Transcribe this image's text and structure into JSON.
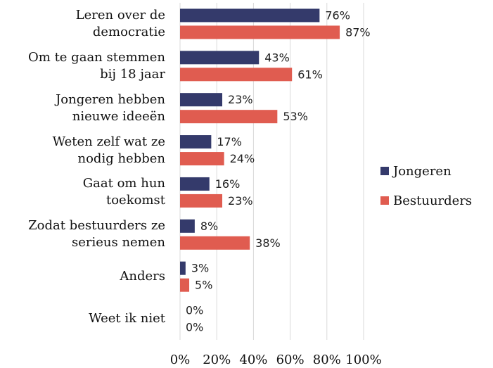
{
  "chart_data": {
    "type": "bar",
    "orientation": "horizontal",
    "categories": [
      "Leren over de\ndemocratie",
      "Om te gaan stemmen\nbij 18 jaar",
      "Jongeren hebben\nnieuwe ideeën",
      "Weten zelf wat ze\nnodig hebben",
      "Gaat om hun\ntoekomst",
      "Zodat bestuurders ze\nserieus nemen",
      "Anders",
      "Weet ik niet"
    ],
    "series": [
      {
        "name": "Jongeren",
        "color": "#343a6b",
        "values": [
          76,
          43,
          23,
          17,
          16,
          8,
          3,
          0
        ],
        "value_labels": [
          "76%",
          "43%",
          "23%",
          "17%",
          "16%",
          "8%",
          "3%",
          "0%"
        ]
      },
      {
        "name": "Bestuurders",
        "color": "#e05c50",
        "values": [
          87,
          61,
          53,
          24,
          23,
          38,
          5,
          0
        ],
        "value_labels": [
          "87%",
          "61%",
          "53%",
          "24%",
          "23%",
          "38%",
          "5%",
          "0%"
        ]
      }
    ],
    "xlim": [
      0,
      100
    ],
    "xticks": [
      {
        "value": 0,
        "label": "0%"
      },
      {
        "value": 20,
        "label": "20%"
      },
      {
        "value": 40,
        "label": "40%"
      },
      {
        "value": 60,
        "label": "60%"
      },
      {
        "value": 80,
        "label": "80%"
      },
      {
        "value": 100,
        "label": "100%"
      }
    ],
    "grid": true,
    "legend": "right"
  }
}
